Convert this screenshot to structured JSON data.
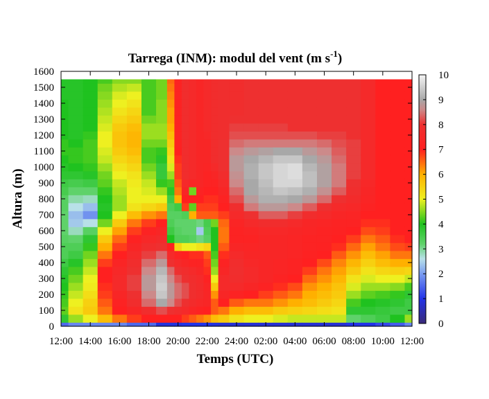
{
  "chart_data": {
    "type": "heatmap",
    "title": "Tarrega (INM): modul del vent (m s",
    "title_superscript": "-1",
    "title_end": ")",
    "xlabel": "Temps (UTC)",
    "ylabel": "Altura (m)",
    "x_ticks": [
      "12:00",
      "14:00",
      "16:00",
      "18:00",
      "20:00",
      "22:00",
      "24:00",
      "02:00",
      "04:00",
      "06:00",
      "08:00",
      "10:00",
      "12:00"
    ],
    "xlim_hours": [
      0,
      24
    ],
    "ylim": [
      0,
      1600
    ],
    "y_ticks": [
      0,
      100,
      200,
      300,
      400,
      500,
      600,
      700,
      800,
      900,
      1000,
      1100,
      1200,
      1300,
      1400,
      1500,
      1600
    ],
    "data_top_m": 1550,
    "colorbar": {
      "range": [
        0,
        10
      ],
      "ticks": [
        0,
        1,
        2,
        3,
        4,
        5,
        6,
        7,
        8,
        9,
        10
      ],
      "stops": [
        {
          "v": 0,
          "color": "#3a2a78"
        },
        {
          "v": 1,
          "color": "#2233e8"
        },
        {
          "v": 2,
          "color": "#7a9cf0"
        },
        {
          "v": 2.6,
          "color": "#b8e0e8"
        },
        {
          "v": 3.2,
          "color": "#5fd26a"
        },
        {
          "v": 4,
          "color": "#1fc21f"
        },
        {
          "v": 5,
          "color": "#eef020"
        },
        {
          "v": 6,
          "color": "#ffb000"
        },
        {
          "v": 7,
          "color": "#ff2020"
        },
        {
          "v": 8,
          "color": "#ee3030"
        },
        {
          "v": 8.6,
          "color": "#cc8a8a"
        },
        {
          "v": 9,
          "color": "#a8a8a8"
        },
        {
          "v": 10,
          "color": "#f4f4f4"
        }
      ]
    },
    "columns_hours": [
      0,
      1,
      2,
      3,
      4,
      5,
      6,
      7,
      7.5,
      8,
      8.5,
      9,
      9.5,
      10,
      10.5,
      11,
      12,
      13,
      14,
      15,
      16,
      17,
      18,
      19,
      20,
      21,
      22,
      23,
      24
    ],
    "levels_m": [
      0,
      50,
      100,
      150,
      200,
      250,
      300,
      350,
      400,
      450,
      500,
      550,
      600,
      650,
      700,
      750,
      800,
      850,
      900,
      950,
      1000,
      1050,
      1100,
      1150,
      1200,
      1250,
      1300,
      1350,
      1400,
      1450,
      1500,
      1550
    ],
    "values_ms": [
      [
        1.5,
        3.8,
        4.3,
        4.2,
        4.1,
        4.0,
        3.9,
        3.8,
        3.6,
        3.4,
        3.4,
        3.3,
        3.2,
        3.2,
        3.2,
        3.3,
        3.3,
        3.5,
        3.6,
        3.8,
        3.9,
        4.0,
        4.1,
        4.1,
        4.0,
        4.0,
        4.0,
        4.0,
        4.0,
        3.9,
        3.9,
        3.9
      ],
      [
        1.8,
        4.6,
        5.2,
        5.0,
        4.8,
        4.6,
        4.4,
        4.2,
        3.9,
        3.6,
        3.4,
        3.2,
        2.8,
        2.4,
        2.3,
        2.6,
        2.9,
        3.2,
        3.5,
        3.8,
        4.0,
        4.1,
        4.1,
        4.0,
        3.9,
        3.9,
        3.9,
        3.9,
        3.9,
        3.9,
        3.9,
        3.9
      ],
      [
        1.8,
        5.0,
        5.6,
        5.5,
        5.3,
        5.1,
        5.0,
        4.8,
        4.6,
        4.4,
        4.1,
        3.8,
        3.3,
        2.6,
        1.9,
        2.3,
        2.8,
        3.2,
        3.6,
        3.9,
        4.1,
        4.2,
        4.2,
        4.2,
        4.1,
        4.0,
        4.0,
        4.0,
        4.0,
        4.0,
        4.0,
        4.0
      ],
      [
        1.8,
        5.8,
        6.4,
        6.6,
        6.8,
        6.9,
        7.0,
        7.0,
        6.8,
        6.4,
        6.0,
        5.6,
        5.0,
        4.4,
        4.0,
        3.9,
        4.0,
        4.1,
        4.3,
        4.4,
        4.6,
        4.8,
        4.9,
        5.0,
        5.0,
        4.9,
        4.8,
        4.7,
        4.6,
        4.5,
        4.4,
        4.2
      ],
      [
        1.8,
        6.4,
        7.0,
        7.2,
        7.4,
        7.6,
        7.6,
        7.5,
        7.3,
        7.0,
        6.8,
        6.5,
        6.1,
        5.6,
        5.0,
        4.6,
        4.6,
        4.7,
        4.8,
        5.0,
        5.2,
        5.4,
        5.6,
        5.7,
        5.7,
        5.6,
        5.4,
        5.2,
        5.0,
        4.9,
        4.7,
        4.5
      ],
      [
        1.5,
        6.8,
        7.4,
        7.8,
        8.0,
        8.1,
        8.1,
        8.0,
        7.8,
        7.6,
        7.4,
        7.1,
        6.8,
        6.4,
        5.8,
        5.2,
        5.0,
        5.0,
        5.1,
        5.2,
        5.4,
        5.6,
        5.8,
        5.9,
        5.9,
        5.8,
        5.6,
        5.4,
        5.2,
        5.0,
        4.8,
        4.5
      ],
      [
        1.5,
        7.0,
        7.8,
        8.4,
        8.6,
        8.8,
        8.8,
        8.6,
        8.4,
        8.1,
        7.8,
        7.5,
        7.2,
        6.8,
        6.2,
        5.4,
        5.0,
        4.9,
        4.8,
        4.6,
        4.4,
        4.2,
        4.2,
        4.4,
        4.6,
        4.6,
        4.4,
        4.2,
        4.2,
        4.2,
        4.2,
        4.2
      ],
      [
        0.9,
        7.0,
        8.2,
        9.0,
        9.4,
        9.5,
        9.4,
        9.2,
        8.8,
        8.4,
        8.0,
        7.7,
        7.4,
        7.0,
        6.4,
        5.6,
        5.0,
        4.6,
        4.1,
        3.7,
        3.7,
        3.9,
        4.1,
        4.4,
        4.6,
        4.6,
        4.5,
        4.5,
        4.5,
        4.4,
        4.4,
        4.4
      ],
      [
        0.9,
        7.0,
        8.0,
        8.6,
        8.8,
        8.8,
        8.6,
        8.4,
        8.0,
        7.6,
        7.0,
        4.0,
        3.6,
        3.4,
        3.3,
        3.4,
        3.6,
        3.9,
        4.2,
        4.6,
        4.9,
        5.2,
        5.4,
        5.6,
        5.8,
        6.0,
        6.1,
        6.1,
        6.2,
        6.3,
        6.4,
        6.5
      ],
      [
        0.9,
        7.0,
        7.8,
        8.2,
        8.4,
        8.4,
        8.2,
        8.0,
        7.6,
        7.2,
        5.4,
        3.4,
        3.3,
        3.2,
        3.3,
        3.6,
        6.0,
        6.4,
        6.6,
        6.8,
        6.8,
        6.9,
        7.0,
        7.1,
        7.2,
        7.2,
        7.2,
        7.2,
        7.2,
        7.2,
        7.2,
        7.2
      ],
      [
        1.0,
        6.8,
        7.6,
        8.0,
        8.2,
        8.2,
        8.0,
        7.8,
        7.4,
        7.0,
        5.0,
        3.4,
        3.2,
        3.2,
        3.4,
        6.8,
        7.0,
        7.4,
        7.6,
        7.8,
        7.8,
        7.8,
        7.8,
        7.8,
        7.8,
        7.8,
        7.8,
        7.8,
        7.8,
        7.8,
        7.8,
        7.8
      ],
      [
        1.0,
        6.6,
        7.3,
        7.7,
        7.9,
        7.9,
        7.8,
        7.6,
        7.2,
        6.9,
        5.0,
        3.3,
        3.2,
        3.2,
        6.0,
        4.3,
        7.0,
        4.4,
        7.4,
        7.6,
        7.6,
        7.6,
        7.6,
        7.6,
        7.6,
        7.6,
        7.6,
        7.6,
        7.6,
        7.6,
        7.6,
        7.6
      ],
      [
        1.0,
        6.4,
        7.1,
        7.5,
        7.7,
        7.7,
        7.6,
        7.4,
        7.2,
        6.9,
        5.2,
        3.1,
        2.4,
        3.1,
        6.6,
        6.8,
        7.0,
        7.2,
        7.4,
        7.4,
        7.4,
        7.4,
        7.4,
        7.4,
        7.4,
        7.4,
        7.4,
        7.4,
        7.4,
        7.4,
        7.4,
        7.4
      ],
      [
        1.0,
        6.2,
        7.0,
        7.4,
        7.4,
        7.3,
        7.1,
        6.9,
        6.8,
        6.6,
        5.4,
        3.3,
        3.4,
        3.5,
        6.6,
        6.8,
        6.9,
        7.0,
        7.2,
        7.2,
        7.3,
        7.4,
        7.4,
        7.4,
        7.5,
        7.6,
        7.6,
        7.6,
        7.6,
        7.6,
        7.6,
        7.6
      ],
      [
        0.9,
        5.8,
        6.6,
        6.6,
        6.2,
        5.6,
        5.0,
        4.6,
        4.4,
        4.2,
        4.0,
        4.0,
        4.0,
        4.4,
        6.6,
        6.8,
        6.9,
        7.0,
        7.2,
        7.4,
        7.6,
        7.8,
        7.8,
        7.8,
        7.8,
        7.8,
        7.8,
        7.8,
        7.8,
        7.8,
        7.8,
        7.8
      ],
      [
        0.8,
        5.6,
        6.4,
        7.0,
        7.4,
        7.6,
        7.6,
        7.4,
        7.2,
        6.9,
        6.6,
        6.4,
        6.4,
        6.5,
        6.8,
        7.0,
        7.2,
        7.4,
        7.6,
        7.8,
        8.0,
        8.0,
        8.0,
        8.0,
        7.9,
        7.9,
        7.9,
        7.9,
        7.9,
        7.9,
        7.9,
        7.9
      ],
      [
        0.8,
        5.2,
        6.0,
        6.6,
        7.2,
        7.6,
        7.8,
        7.9,
        7.8,
        7.6,
        7.4,
        7.2,
        7.2,
        7.3,
        7.6,
        7.9,
        8.2,
        8.4,
        8.6,
        8.7,
        8.8,
        8.8,
        8.6,
        8.4,
        8.2,
        8.1,
        8.0,
        7.9,
        7.9,
        7.8,
        7.8,
        7.8
      ],
      [
        0.8,
        5.0,
        5.8,
        6.4,
        7.0,
        7.4,
        7.6,
        7.6,
        7.5,
        7.4,
        7.3,
        7.2,
        7.3,
        7.6,
        8.0,
        8.5,
        8.8,
        9.0,
        9.0,
        9.1,
        9.1,
        9.0,
        8.8,
        8.5,
        8.2,
        8.1,
        8.0,
        8.0,
        8.0,
        8.0,
        8.0,
        8.0
      ],
      [
        0.8,
        5.0,
        5.8,
        6.4,
        6.8,
        7.2,
        7.4,
        7.4,
        7.4,
        7.4,
        7.4,
        7.4,
        7.5,
        7.8,
        8.3,
        8.8,
        9.1,
        9.2,
        9.3,
        9.4,
        9.4,
        9.2,
        8.9,
        8.5,
        8.2,
        8.1,
        8.0,
        8.0,
        8.0,
        8.0,
        8.0,
        8.0
      ],
      [
        0.8,
        4.9,
        5.6,
        6.2,
        6.6,
        6.9,
        7.2,
        7.3,
        7.3,
        7.4,
        7.4,
        7.4,
        7.5,
        7.8,
        8.3,
        8.8,
        9.1,
        9.4,
        9.6,
        9.6,
        9.6,
        9.4,
        9.0,
        8.5,
        8.2,
        8.1,
        8.0,
        8.0,
        8.0,
        8.0,
        8.0,
        8.0
      ],
      [
        0.8,
        4.8,
        5.5,
        6.0,
        6.4,
        6.7,
        7.0,
        7.2,
        7.2,
        7.3,
        7.3,
        7.3,
        7.4,
        7.6,
        8.1,
        8.6,
        9.0,
        9.3,
        9.6,
        9.7,
        9.7,
        9.4,
        9.0,
        8.5,
        8.2,
        8.0,
        8.0,
        8.0,
        8.0,
        8.0,
        8.0,
        8.0
      ],
      [
        0.8,
        4.8,
        5.4,
        5.8,
        6.0,
        6.2,
        6.5,
        6.8,
        7.0,
        7.1,
        7.2,
        7.2,
        7.3,
        7.4,
        7.8,
        8.3,
        8.8,
        9.1,
        9.3,
        9.3,
        9.2,
        9.0,
        8.8,
        8.5,
        8.2,
        8.0,
        8.0,
        8.0,
        8.0,
        8.0,
        8.0,
        8.0
      ],
      [
        0.8,
        4.8,
        5.3,
        5.6,
        5.8,
        6.0,
        6.2,
        6.4,
        6.7,
        7.0,
        7.1,
        7.2,
        7.2,
        7.3,
        7.6,
        8.0,
        8.4,
        8.7,
        8.9,
        8.9,
        8.9,
        8.8,
        8.6,
        8.4,
        8.1,
        8.0,
        8.0,
        8.0,
        8.0,
        8.0,
        8.0,
        8.0
      ],
      [
        0.8,
        4.8,
        5.2,
        5.4,
        5.6,
        5.7,
        5.9,
        6.1,
        6.3,
        6.6,
        6.9,
        7.0,
        7.1,
        7.2,
        7.4,
        7.6,
        8.0,
        8.3,
        8.5,
        8.5,
        8.5,
        8.4,
        8.3,
        8.2,
        8.1,
        8.0,
        8.0,
        8.0,
        8.0,
        8.0,
        8.0,
        8.0
      ],
      [
        1.0,
        3.2,
        3.8,
        4.2,
        4.6,
        4.9,
        5.2,
        5.6,
        5.9,
        6.2,
        6.5,
        6.8,
        7.0,
        7.2,
        7.3,
        7.5,
        7.7,
        7.9,
        8.0,
        8.1,
        8.1,
        8.1,
        8.1,
        8.1,
        8.0,
        8.0,
        8.0,
        8.0,
        8.0,
        8.0,
        8.0,
        8.0
      ],
      [
        1.0,
        3.4,
        3.8,
        4.0,
        4.3,
        4.6,
        4.9,
        5.2,
        5.5,
        5.8,
        6.1,
        6.4,
        6.7,
        6.9,
        7.0,
        7.2,
        7.3,
        7.4,
        7.5,
        7.6,
        7.6,
        7.6,
        7.6,
        7.6,
        7.6,
        7.6,
        7.6,
        7.6,
        7.6,
        7.6,
        7.6,
        7.6
      ],
      [
        1.2,
        3.6,
        3.7,
        3.9,
        4.2,
        4.6,
        5.0,
        5.4,
        5.8,
        6.1,
        6.4,
        6.6,
        6.8,
        6.9,
        7.0,
        7.0,
        7.0,
        7.0,
        7.0,
        7.0,
        7.0,
        7.0,
        7.0,
        7.0,
        7.0,
        7.0,
        7.0,
        7.0,
        7.0,
        7.0,
        7.0,
        7.0
      ],
      [
        1.4,
        4.0,
        3.6,
        3.8,
        4.1,
        4.5,
        5.0,
        5.5,
        6.0,
        6.4,
        6.7,
        6.9,
        7.0,
        7.0,
        7.0,
        7.0,
        7.0,
        7.0,
        7.0,
        7.0,
        7.0,
        7.0,
        7.0,
        7.0,
        7.0,
        7.0,
        7.0,
        7.0,
        7.0,
        7.0,
        7.0,
        7.0
      ],
      [
        1.8,
        4.6,
        3.6,
        3.6,
        3.8,
        4.2,
        4.8,
        5.4,
        6.0,
        6.4,
        6.8,
        7.0,
        7.0,
        7.0,
        7.0,
        7.0,
        7.0,
        7.0,
        7.0,
        7.0,
        7.0,
        7.0,
        7.0,
        7.0,
        7.0,
        7.0,
        7.0,
        7.0,
        7.0,
        7.0,
        7.0,
        7.0
      ]
    ]
  }
}
